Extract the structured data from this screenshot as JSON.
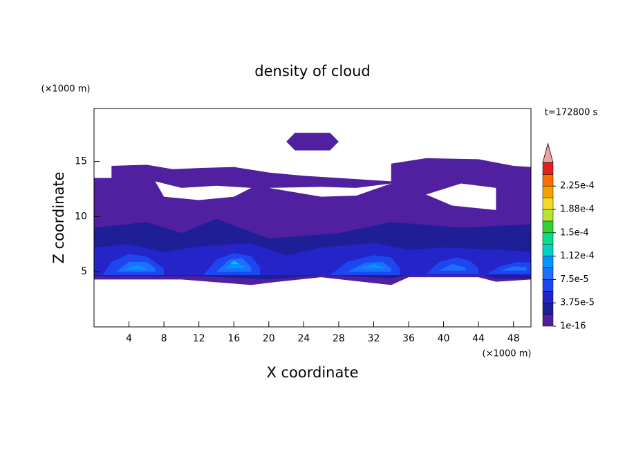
{
  "chart_data": {
    "type": "contour",
    "title": "density of cloud",
    "x_label": "X coordinate",
    "y_label": "Z coordinate",
    "x_unit": "(×1000 m)",
    "y_unit": "(×1000 m)",
    "time_label": "t=172800 s",
    "xlim": [
      0,
      50
    ],
    "ylim": [
      0,
      19.8
    ],
    "xticks": [
      4,
      8,
      12,
      16,
      20,
      24,
      28,
      32,
      36,
      40,
      44,
      48
    ],
    "yticks": [
      5,
      10,
      15
    ],
    "levels": [
      1e-16,
      1.875e-05,
      3.75e-05,
      5.625e-05,
      7.5e-05,
      9.375e-05,
      0.0001125,
      0.00013125,
      0.00015,
      0.00016875,
      0.0001875,
      0.00020625,
      0.000225,
      0.00024375
    ],
    "colors": [
      "#5020a0",
      "#1e1e96",
      "#2424c8",
      "#1e46f0",
      "#1e6eff",
      "#0096ff",
      "#00d2c8",
      "#00e08c",
      "#32d232",
      "#b4e632",
      "#f0dc28",
      "#f5a000",
      "#ff6e00",
      "#e61e1e"
    ],
    "overflow_color": "#f0a0a0",
    "colorbar_ticks": [
      1e-16,
      {
        "value": 3.75e-05,
        "label": "3.75e-5"
      },
      {
        "value": 7.5e-05,
        "label": "7.5e-5"
      },
      {
        "value": 0.0001125,
        "label": "1.12e-4"
      },
      {
        "value": 0.00015,
        "label": "1.5e-4"
      },
      {
        "value": 0.0001875,
        "label": "1.88e-4"
      },
      {
        "value": 0.000225,
        "label": "2.25e-4"
      }
    ],
    "contours": [
      {
        "level": 0,
        "x": [
          0,
          0,
          2,
          2,
          6,
          9,
          12,
          16,
          20,
          24,
          28,
          34,
          34,
          38,
          44,
          48,
          50,
          50,
          46,
          44,
          36,
          34,
          26,
          20,
          18,
          10,
          0
        ],
        "y": [
          4,
          13.5,
          13.5,
          14.6,
          14.7,
          14.3,
          14.4,
          14.5,
          14,
          13.7,
          13.5,
          13.2,
          14.8,
          15.3,
          15.2,
          14.6,
          14.5,
          4.3,
          4.1,
          4.5,
          4.5,
          3.8,
          4.5,
          4,
          3.8,
          4.3,
          4.3
        ]
      },
      {
        "level": 0,
        "x": [
          22,
          23,
          27,
          28,
          27,
          23
        ],
        "y": [
          16.8,
          17.6,
          17.6,
          16.8,
          16,
          16
        ]
      },
      {
        "level": -1,
        "x": [
          7,
          10,
          14,
          18,
          16,
          12,
          8
        ],
        "y": [
          13.2,
          12.6,
          12.8,
          12.6,
          11.8,
          11.5,
          11.8
        ]
      },
      {
        "level": -1,
        "x": [
          20,
          26,
          30,
          34,
          30,
          26,
          23
        ],
        "y": [
          12.6,
          12.7,
          12.6,
          13,
          11.9,
          11.8,
          12.2
        ]
      },
      {
        "level": -1,
        "x": [
          38,
          42,
          46,
          46,
          41
        ],
        "y": [
          12,
          13,
          12.6,
          10.6,
          11
        ]
      },
      {
        "level": 1,
        "x": [
          0,
          0,
          6,
          10,
          14,
          20,
          28,
          34,
          42,
          50,
          50,
          46,
          44,
          36,
          34,
          26,
          20,
          12,
          0
        ],
        "y": [
          4.4,
          9,
          9.5,
          8.5,
          9.8,
          8,
          8.5,
          9.5,
          9,
          9.3,
          4.4,
          4.4,
          4.8,
          4.7,
          4.4,
          4.7,
          4.3,
          4.6,
          4.6
        ]
      },
      {
        "level": 2,
        "x": [
          0,
          0,
          4,
          8,
          12,
          18,
          22,
          26,
          32,
          36,
          40,
          46,
          50,
          50
        ],
        "y": [
          4.7,
          7.2,
          7.5,
          6.8,
          7.3,
          7.6,
          6.5,
          7.2,
          7.6,
          7,
          7.2,
          7,
          6.8,
          4.7
        ]
      },
      {
        "level": 3,
        "x": [
          1,
          2,
          4,
          6,
          8,
          8
        ],
        "y": [
          4.7,
          5.9,
          6.6,
          6.4,
          5.3,
          4.7
        ]
      },
      {
        "level": 3,
        "x": [
          12.5,
          14,
          16,
          18,
          19,
          19
        ],
        "y": [
          4.7,
          6.1,
          6.7,
          6.4,
          5.4,
          4.7
        ]
      },
      {
        "level": 3,
        "x": [
          27,
          29,
          32,
          34,
          35,
          35
        ],
        "y": [
          4.7,
          5.9,
          6.5,
          6.3,
          5.3,
          4.7
        ]
      },
      {
        "level": 3,
        "x": [
          38,
          39.5,
          41.5,
          43,
          44,
          44
        ],
        "y": [
          4.8,
          5.9,
          6.3,
          6,
          5.3,
          4.8
        ]
      },
      {
        "level": 3,
        "x": [
          45,
          46.5,
          48.5,
          50,
          50
        ],
        "y": [
          4.8,
          5.5,
          5.9,
          5.8,
          4.8
        ]
      },
      {
        "level": 4,
        "x": [
          2.5,
          4,
          6,
          7,
          7
        ],
        "y": [
          5,
          5.9,
          5.9,
          5.3,
          5
        ]
      },
      {
        "level": 4,
        "x": [
          14,
          15.5,
          17,
          18,
          18
        ],
        "y": [
          5,
          6.1,
          6.2,
          5.4,
          5
        ]
      },
      {
        "level": 4,
        "x": [
          29,
          31,
          33,
          34,
          34
        ],
        "y": [
          5,
          5.8,
          5.9,
          5.3,
          5
        ]
      },
      {
        "level": 4,
        "x": [
          39.5,
          41,
          42.5,
          42.5
        ],
        "y": [
          5.1,
          5.7,
          5.4,
          5.1
        ]
      },
      {
        "level": 4,
        "x": [
          46.5,
          48,
          49.5,
          49.5
        ],
        "y": [
          5.1,
          5.5,
          5.4,
          5.1
        ]
      },
      {
        "level": 5,
        "x": [
          3.5,
          5,
          6,
          6
        ],
        "y": [
          5.2,
          5.6,
          5.3,
          5.2
        ]
      },
      {
        "level": 5,
        "x": [
          15,
          16,
          17.2,
          17.2
        ],
        "y": [
          5.3,
          5.9,
          5.5,
          5.3
        ]
      },
      {
        "level": 5,
        "x": [
          30.5,
          32,
          33.2,
          33.2
        ],
        "y": [
          5.3,
          5.7,
          5.4,
          5.3
        ]
      },
      {
        "level": 6,
        "x": [
          15.6,
          16,
          16.6
        ],
        "y": [
          5.7,
          6,
          5.7
        ]
      }
    ]
  }
}
